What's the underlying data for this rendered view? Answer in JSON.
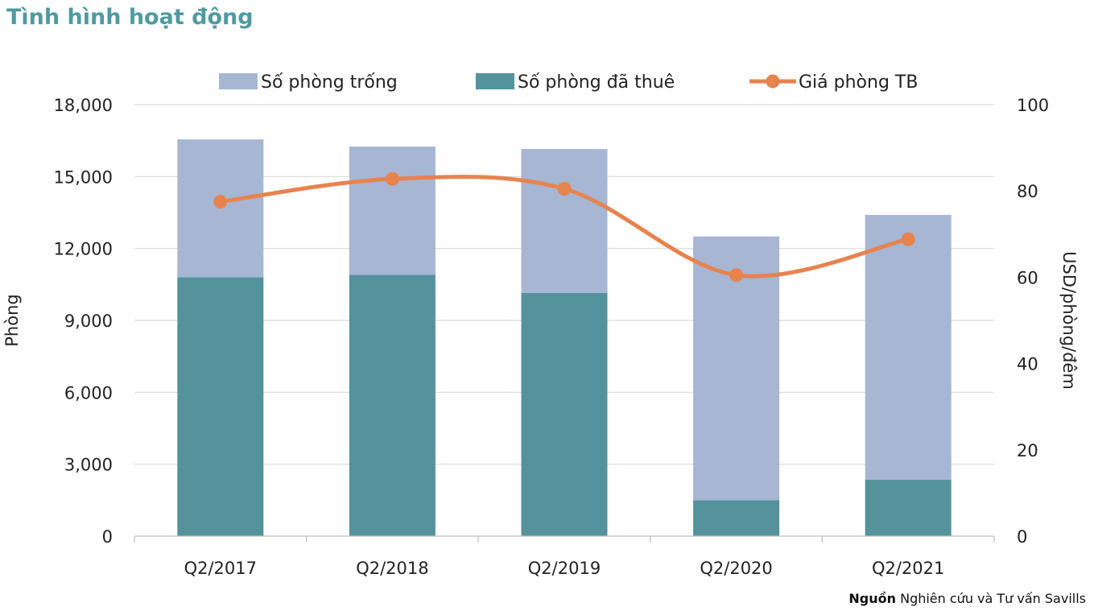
{
  "title": "Tình hình hoạt động",
  "source": {
    "label": "Nguồn",
    "text": "Nghiên cứu và Tư vấn Savills"
  },
  "colors": {
    "vacant": "#a6b6d3",
    "occupied": "#54939b",
    "price": "#e8834e",
    "grid": "#d9d9d9",
    "title": "#4f9aa0"
  },
  "chart_data": {
    "type": "bar",
    "stacked": true,
    "categories": [
      "Q2/2017",
      "Q2/2018",
      "Q2/2019",
      "Q2/2020",
      "Q2/2021"
    ],
    "series": [
      {
        "name": "Số phòng đã thuê",
        "type": "bar",
        "axis": "left",
        "values": [
          10800,
          10900,
          10150,
          1500,
          2350
        ]
      },
      {
        "name": "Số phòng trống",
        "type": "bar",
        "axis": "left",
        "values": [
          5750,
          5350,
          6000,
          11000,
          11050
        ]
      },
      {
        "name": "Giá phòng TB",
        "type": "line",
        "axis": "right",
        "smooth": true,
        "values": [
          77.5,
          82.8,
          80.5,
          60.5,
          68.8
        ]
      }
    ],
    "legend_order": [
      "Số phòng trống",
      "Số phòng đã thuê",
      "Giá phòng TB"
    ],
    "legend_position": "top",
    "ylabel": "Phòng",
    "y2label": "USD/phòng/đêm",
    "ylim": [
      0,
      18000
    ],
    "y2lim": [
      0,
      100
    ],
    "yticks": [
      "0",
      "3,000",
      "6,000",
      "9,000",
      "12,000",
      "15,000",
      "18,000"
    ],
    "y2ticks": [
      "0",
      "20",
      "40",
      "60",
      "80",
      "100"
    ],
    "grid": true
  }
}
